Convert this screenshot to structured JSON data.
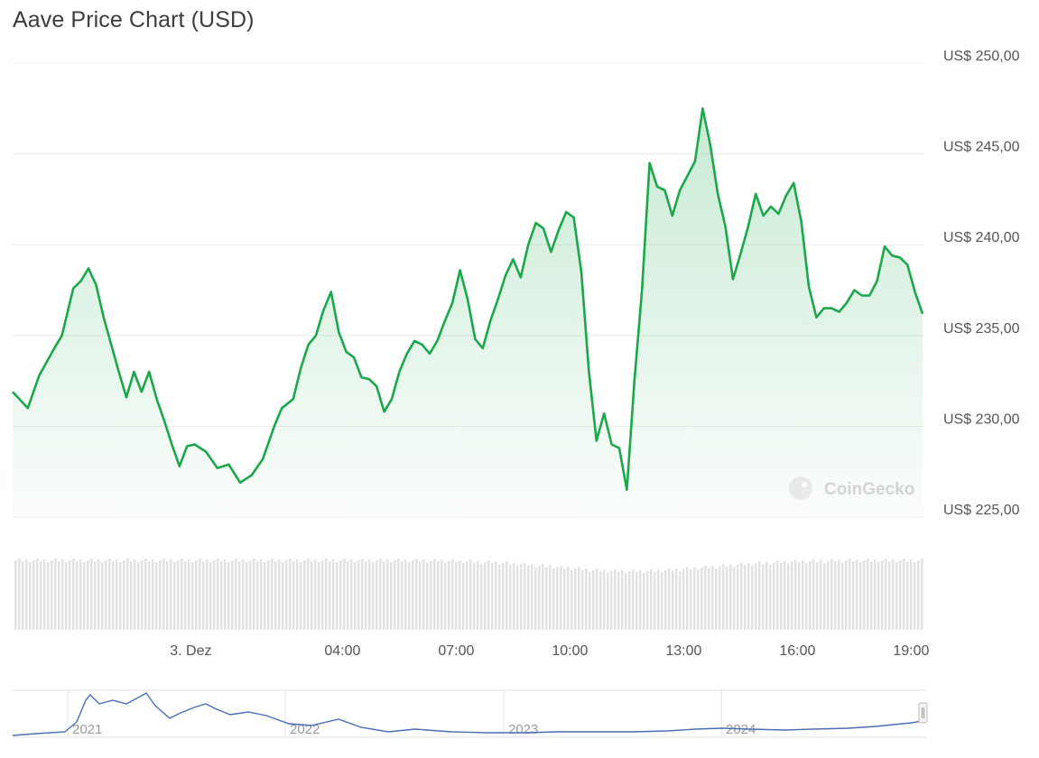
{
  "header": {
    "title": "Aave Price Chart (USD)"
  },
  "watermark": "CoinGecko",
  "colors": {
    "line": "#1aa84b",
    "grid": "#ececec",
    "volume": "#e3e3e3",
    "navigator_line": "#4a6eb8"
  },
  "chart_data": {
    "type": "area",
    "title": "Aave Price Chart (USD)",
    "xlabel": "",
    "ylabel": "",
    "ylim": [
      225,
      250
    ],
    "y_ticks": [
      "US$ 250,00",
      "US$ 245,00",
      "US$ 240,00",
      "US$ 235,00",
      "US$ 230,00",
      "US$ 225,00"
    ],
    "y_tick_values": [
      250,
      245,
      240,
      235,
      230,
      225
    ],
    "x_ticks": [
      "3. Dez",
      "04:00",
      "07:00",
      "10:00",
      "13:00",
      "16:00",
      "19:00"
    ],
    "x_tick_hours": [
      0,
      4,
      7,
      10,
      13,
      16,
      19
    ],
    "xlim_hours": [
      -4.7,
      19.3
    ],
    "grid": true,
    "legend": "none",
    "series": [
      {
        "x": [
          -4.7,
          -4.3,
          -4.0,
          -3.6,
          -3.4,
          -3.1,
          -2.9,
          -2.7,
          -2.5,
          -2.3,
          -2.1,
          -1.9,
          -1.7,
          -1.5,
          -1.3,
          -1.1,
          -0.9,
          -0.7,
          -0.5,
          -0.3,
          -0.1,
          0.1,
          0.4,
          0.7,
          1.0,
          1.3,
          1.6,
          1.9,
          2.2,
          2.4,
          2.7,
          2.9,
          3.1,
          3.3,
          3.5,
          3.7,
          3.9,
          4.1,
          4.3,
          4.5,
          4.7,
          4.9,
          5.1,
          5.3,
          5.5,
          5.7,
          5.9,
          6.1,
          6.3,
          6.5,
          6.7,
          6.9,
          7.1,
          7.3,
          7.5,
          7.7,
          7.9,
          8.1,
          8.3,
          8.5,
          8.7,
          8.9,
          9.1,
          9.3,
          9.5,
          9.7,
          9.9,
          10.1,
          10.3,
          10.5,
          10.7,
          10.9,
          11.1,
          11.3,
          11.5,
          11.7,
          11.9,
          12.1,
          12.3,
          12.5,
          12.7,
          12.9,
          13.1,
          13.3,
          13.5,
          13.7,
          13.9,
          14.1,
          14.3,
          14.5,
          14.7,
          14.9,
          15.1,
          15.3,
          15.5,
          15.7,
          15.9,
          16.1,
          16.3,
          16.5,
          16.7,
          16.9,
          17.1,
          17.3,
          17.5,
          17.7,
          17.9,
          18.1,
          18.3,
          18.5,
          18.7,
          18.9,
          19.1,
          19.3
        ],
        "values": [
          231.9,
          231.0,
          232.8,
          234.3,
          235.0,
          237.6,
          238.0,
          238.7,
          237.8,
          236.0,
          234.5,
          233.0,
          231.6,
          233.0,
          231.9,
          233.0,
          231.5,
          230.3,
          229.0,
          227.8,
          228.9,
          229.0,
          228.6,
          227.7,
          227.9,
          226.9,
          227.3,
          228.2,
          230.0,
          231.0,
          231.5,
          233.2,
          234.5,
          235.0,
          236.4,
          237.4,
          235.2,
          234.1,
          233.8,
          232.7,
          232.6,
          232.2,
          230.8,
          231.5,
          233.0,
          234.0,
          234.7,
          234.5,
          234.0,
          234.7,
          235.8,
          236.8,
          238.6,
          237.0,
          234.8,
          234.3,
          235.8,
          237.0,
          238.3,
          239.2,
          238.2,
          240.0,
          241.2,
          240.9,
          239.6,
          240.8,
          241.8,
          241.5,
          238.5,
          233.0,
          229.2,
          230.7,
          229.0,
          228.8,
          226.5,
          232.5,
          237.5,
          244.5,
          243.2,
          243.0,
          241.6,
          243.0,
          243.8,
          244.6,
          247.5,
          245.5,
          242.8,
          241.0,
          238.1,
          239.5,
          241.0,
          242.8,
          241.6,
          242.1,
          241.7,
          242.7,
          243.4,
          241.3,
          237.7,
          236.0,
          236.5,
          236.5,
          236.3,
          236.8,
          237.5,
          237.2,
          237.2,
          238.0,
          239.9,
          239.4,
          239.3,
          238.9,
          237.4,
          236.2
        ]
      }
    ],
    "navigator": {
      "x_labels": [
        "2021",
        "2022",
        "2023",
        "2024"
      ]
    }
  }
}
